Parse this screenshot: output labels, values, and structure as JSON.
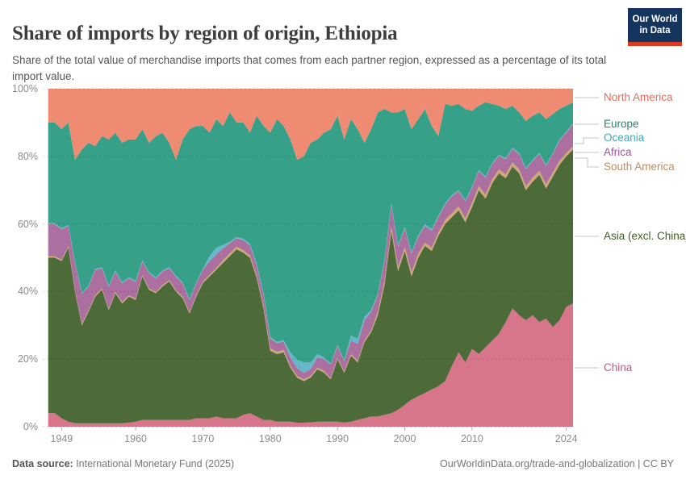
{
  "header": {
    "title": "Share of imports by region of origin, Ethiopia",
    "subtitle": "Share of the total value of merchandise imports that comes from each partner region, expressed as a percentage of its total import value.",
    "logo": {
      "line1": "Our World",
      "line2": "in Data"
    }
  },
  "footer": {
    "source_label": "Data source:",
    "source_text": " International Monetary Fund (2025)",
    "link_text": "OurWorldinData.org/trade-and-globalization | CC BY"
  },
  "chart_data": {
    "type": "area",
    "stacked": true,
    "unit": "%",
    "title": "Share of imports by region of origin, Ethiopia",
    "ylim": [
      0,
      100
    ],
    "grid": true,
    "year_start": 1947,
    "year_end": 2025,
    "x_ticks": [
      1949,
      1960,
      1970,
      1980,
      1990,
      2000,
      2010,
      2024
    ],
    "y_ticks": [
      {
        "label": "0%",
        "value": 0
      },
      {
        "label": "20%",
        "value": 20
      },
      {
        "label": "40%",
        "value": 40
      },
      {
        "label": "60%",
        "value": 60
      },
      {
        "label": "80%",
        "value": 80
      },
      {
        "label": "100%",
        "value": 100
      }
    ],
    "series": [
      {
        "name": "China",
        "area_color": "#d7758b",
        "label_color": "#cd597c",
        "values": [
          4,
          4,
          2.5,
          1.5,
          1,
          1,
          1,
          1,
          1,
          1,
          1,
          1,
          1.2,
          1.5,
          2,
          2,
          2,
          2,
          2,
          2,
          2,
          2,
          2.5,
          2.5,
          2.5,
          3,
          2.5,
          2.5,
          2.5,
          3.5,
          4,
          3,
          2,
          2,
          1.5,
          1.5,
          1.5,
          1.2,
          1.2,
          1.3,
          1.5,
          1.5,
          1.5,
          1.5,
          1.2,
          1.5,
          2,
          2.5,
          3,
          3,
          3.5,
          4,
          5,
          6.5,
          8,
          9,
          10,
          11,
          12,
          13.5,
          18,
          22,
          19,
          23,
          21.5,
          23.5,
          25.5,
          27.5,
          31,
          35,
          33,
          31.5,
          33,
          31,
          32,
          29.5,
          31.5,
          35.5,
          36.5
        ]
      },
      {
        "name": "Asia (excl. China)",
        "area_color": "#4c6b39",
        "label_color": "#405e26",
        "values": [
          46,
          46,
          46.5,
          51.5,
          39,
          29,
          33,
          37.5,
          39.5,
          33.5,
          38.5,
          35.5,
          37.3,
          36,
          42.5,
          38.5,
          37.5,
          39.5,
          41,
          38,
          36,
          31.5,
          36,
          40,
          42,
          43.5,
          46,
          48,
          50,
          48,
          46,
          41,
          33,
          20.5,
          20,
          20.5,
          16,
          13.3,
          12.3,
          13.2,
          15.5,
          14.5,
          12.5,
          18.5,
          14.8,
          19.5,
          17,
          22.5,
          25,
          30,
          38.5,
          54,
          41,
          45.5,
          36.5,
          41,
          43.5,
          41,
          44.5,
          46.5,
          44,
          42,
          41.5,
          42,
          48.5,
          44,
          46.5,
          47.5,
          42.5,
          42,
          42,
          38.5,
          39.5,
          43.5,
          38.5,
          44.5,
          46,
          44.5,
          45.5
        ]
      },
      {
        "name": "South America",
        "area_color": "#cfa877",
        "label_color": "#be8e62",
        "values": [
          0.4,
          0.4,
          0.4,
          0.4,
          0.4,
          0.4,
          0.4,
          0.4,
          0.4,
          0.4,
          0.4,
          0.4,
          0.4,
          0.4,
          0.4,
          0.4,
          0.4,
          0.4,
          0.4,
          0.4,
          0.4,
          0.4,
          0.4,
          0.4,
          0.5,
          0.5,
          0.8,
          0.8,
          0.8,
          0.7,
          0.7,
          0.7,
          0.7,
          0.7,
          0.7,
          0.7,
          0.5,
          0.5,
          0.5,
          0.5,
          0.5,
          0.5,
          0.4,
          0.4,
          0.4,
          0.5,
          0.5,
          0.5,
          0.5,
          1,
          1.2,
          1.2,
          1.2,
          1.2,
          1.2,
          1.2,
          1,
          1,
          1,
          1.2,
          1.2,
          1.2,
          1.2,
          1.2,
          1.2,
          1.2,
          1.2,
          1.2,
          1.2,
          1.2,
          1.2,
          1.2,
          1.2,
          1.2,
          1.2,
          1.2,
          1.2,
          1,
          1
        ]
      },
      {
        "name": "Africa",
        "area_color": "#ab6fa0",
        "label_color": "#a2559c",
        "values": [
          9.5,
          9.5,
          9,
          6,
          8,
          9,
          7,
          7.5,
          6,
          6.5,
          6,
          5.5,
          5,
          5,
          4,
          4.5,
          4,
          4,
          3.5,
          4,
          4,
          3.5,
          3.5,
          3.5,
          4,
          4,
          3.5,
          3,
          2.5,
          3,
          3,
          3,
          3.5,
          3,
          2.5,
          2.5,
          2.5,
          2.3,
          2,
          2,
          3,
          3.5,
          4,
          3.5,
          3,
          4,
          5,
          6,
          5.5,
          5,
          6,
          6.5,
          6,
          5.5,
          5.5,
          5,
          5,
          5,
          4.5,
          4.5,
          5,
          4.5,
          5,
          4.5,
          4.5,
          5,
          4.5,
          4,
          4.5,
          4,
          4.5,
          5,
          5,
          5,
          5.5,
          5.5,
          6,
          6,
          6.5
        ]
      },
      {
        "name": "Oceania",
        "area_color": "#65b7c9",
        "label_color": "#43a8bd",
        "values": [
          0.3,
          0.3,
          0.3,
          0.3,
          0.3,
          0.3,
          0.3,
          0.3,
          0.3,
          0.3,
          0.3,
          0.3,
          0.3,
          0.3,
          0.3,
          0.3,
          0.3,
          0.3,
          0.3,
          0.3,
          0.3,
          0.3,
          0.3,
          0.3,
          1.5,
          2,
          1,
          0.4,
          0.3,
          0.4,
          0.4,
          0.4,
          0.4,
          0.4,
          0.4,
          0.4,
          1.5,
          2.5,
          3,
          2,
          1,
          0.5,
          0.3,
          0.3,
          0.3,
          1.5,
          1.5,
          1,
          0.5,
          0.4,
          0.4,
          0.4,
          0.4,
          0.4,
          0.4,
          0.4,
          0.4,
          0.4,
          0.4,
          0.4,
          0.3,
          0.3,
          0.3,
          0.3,
          0.3,
          0.3,
          0.3,
          0.3,
          0.3,
          0.3,
          0.3,
          0.3,
          0.3,
          0.3,
          0.3,
          0.3,
          0.3,
          0.3,
          0.3
        ]
      },
      {
        "name": "Europe",
        "area_color": "#36a188",
        "label_color": "#2c8465",
        "values": [
          29.8,
          29.8,
          29.3,
          30.3,
          30.3,
          42.3,
          42.3,
          36.3,
          38.8,
          43.3,
          40.8,
          41.3,
          40.8,
          41.8,
          38.8,
          38.3,
          41.8,
          40.8,
          36.8,
          34.3,
          42.3,
          50.3,
          46.3,
          42.3,
          36.5,
          38,
          35.2,
          38.3,
          33.9,
          34.4,
          32.9,
          43.9,
          49.4,
          60.4,
          65.9,
          63.4,
          63,
          59.2,
          61,
          65,
          63.5,
          66.5,
          69.3,
          67.8,
          65.3,
          64,
          62,
          51.5,
          53.5,
          53.6,
          44.4,
          26.9,
          39.4,
          34.9,
          36.4,
          34.4,
          34.1,
          30.6,
          23.6,
          29.4,
          26.5,
          25.5,
          27,
          22.5,
          19,
          22,
          17.5,
          14.5,
          14.5,
          12.5,
          12,
          14,
          13,
          12,
          13.5,
          11.5,
          9,
          7.7,
          6.2
        ]
      },
      {
        "name": "North America",
        "area_color": "#ef8b72",
        "label_color": "#e56e5a",
        "values": [
          10,
          10,
          12,
          10,
          21,
          18,
          16,
          17,
          14,
          15,
          13,
          16,
          15,
          15,
          12,
          16,
          14,
          13,
          16,
          21,
          15,
          12,
          11,
          11,
          13,
          9,
          11,
          7,
          10,
          10,
          13,
          8,
          11,
          13,
          9,
          11,
          15,
          21,
          20,
          16,
          15,
          13,
          12,
          8,
          15,
          9,
          12,
          16,
          12,
          7,
          6,
          7,
          7,
          6,
          12,
          9,
          6,
          11,
          14,
          4.5,
          5,
          4.5,
          6,
          6.5,
          5,
          4,
          4.5,
          5,
          6,
          5,
          7,
          9.5,
          8,
          7,
          9,
          7.5,
          6,
          5,
          4
        ]
      }
    ],
    "legend": [
      {
        "label": "North America",
        "series": "North America"
      },
      {
        "label": "Europe",
        "series": "Europe"
      },
      {
        "label": "Oceania",
        "series": "Oceania"
      },
      {
        "label": "Africa",
        "series": "Africa"
      },
      {
        "label": "South America",
        "series": "South America"
      },
      {
        "label": "Asia (excl. China)",
        "series": "Asia (excl. China)"
      },
      {
        "label": "China",
        "series": "China"
      }
    ],
    "legend_position": "right"
  }
}
